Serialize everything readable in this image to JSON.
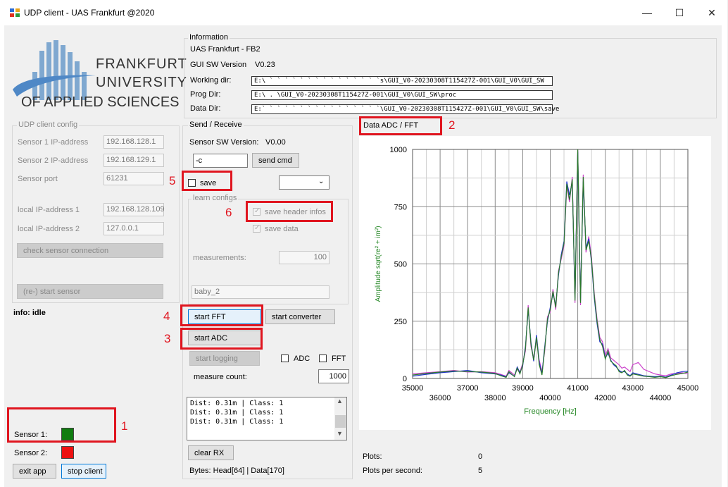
{
  "window": {
    "title": "UDP client - UAS Frankfurt @2020",
    "minimize": "—",
    "maximize": "☐",
    "close": "✕"
  },
  "logo": {
    "line1": "FRANKFURT",
    "line2": "UNIVERSITY",
    "line3": "OF APPLIED SCIENCES"
  },
  "information": {
    "title": "Information",
    "org": "UAS Frankfurt - FB2",
    "gui_sw_label": "GUI SW Version",
    "gui_sw_value": "V0.23",
    "working_dir_label": "Working dir:",
    "working_dir": "E:\\ ` ` ` ` ` ` ` ` ` ` ` ` ` ` `s\\GUI_V0-20230308T115427Z-001\\GUI_V0\\GUI_SW",
    "prog_dir_label": "Prog Dir:",
    "prog_dir": "E:\\        .           \\GUI_V0-20230308T115427Z-001\\GUI_V0\\GUI_SW\\proc",
    "data_dir_label": "Data Dir:",
    "data_dir": "E:` ` ` ` ` ` ` ` ` ` ` ` ` ` ` `\\GUI_V0-20230308T115427Z-001\\GUI_V0\\GUI_SW\\save"
  },
  "udp_config": {
    "title": "UDP client config",
    "sensor1_label": "Sensor 1 IP-address",
    "sensor1_ip": "192.168.128.1",
    "sensor2_label": "Sensor 2 IP-address",
    "sensor2_ip": "192.168.129.1",
    "port_label": "Sensor port",
    "port": "61231",
    "local1_label": "local IP-address 1",
    "local1": "192.168.128.109",
    "local2_label": "local IP-address 2",
    "local2": "127.0.0.1",
    "check_btn": "check sensor connection",
    "restart_btn": "(re-) start sensor"
  },
  "info": "info: idle",
  "status": {
    "sensor1_label": "Sensor 1:",
    "sensor1_color": "#107c10",
    "sensor2_label": "Sensor 2:",
    "sensor2_color": "#ee1111",
    "exit_btn": "exit app",
    "stop_btn": "stop client"
  },
  "send_receive": {
    "title": "Send / Receive",
    "sensor_sw_label": "Sensor SW Version:",
    "sensor_sw_value": "V0.00",
    "cmd_value": "-c",
    "send_cmd_btn": "send cmd",
    "save_label": "save",
    "learn_title": "learn configs",
    "save_header_label": "save header infos",
    "save_data_label": "save data",
    "measurements_label": "measurements:",
    "measurements_value": "100",
    "name_value": "baby_2",
    "start_fft_btn": "start FFT",
    "start_converter_btn": "start converter",
    "start_adc_btn": "start ADC",
    "start_logging_btn": "start logging",
    "adc_label": "ADC",
    "fft_label": "FFT",
    "measure_count_label": "measure count:",
    "measure_count": "1000",
    "console_lines": [
      "Dist: 0.31m | Class: 1",
      "Dist: 0.31m | Class: 1",
      "Dist: 0.31m | Class: 1"
    ],
    "clear_rx_btn": "clear RX",
    "bytes": "Bytes: Head[64] | Data[170]"
  },
  "chart_panel": {
    "title": "Data ADC / FFT",
    "plots_label": "Plots:",
    "plots_value": "0",
    "pps_label": "Plots per second:",
    "pps_value": "5"
  },
  "annotations": [
    "1",
    "2",
    "3",
    "4",
    "5",
    "6"
  ],
  "chart_data": {
    "type": "line",
    "xlabel": "Frequency [Hz]",
    "ylabel": "Amplitude sqrt(re² + im²)",
    "xlim": [
      35000,
      45000
    ],
    "ylim": [
      0,
      1000
    ],
    "xticks": [
      35000,
      36000,
      37000,
      38000,
      39000,
      40000,
      41000,
      42000,
      43000,
      44000,
      45000
    ],
    "yticks": [
      0,
      250,
      500,
      750,
      1000
    ],
    "grid": true,
    "series": [
      {
        "color": "#2a7a2a",
        "x": [
          35000,
          35500,
          36000,
          36500,
          37000,
          37500,
          38000,
          38200,
          38400,
          38500,
          38700,
          38800,
          38900,
          39000,
          39100,
          39200,
          39300,
          39400,
          39500,
          39600,
          39700,
          39800,
          39900,
          40000,
          40100,
          40200,
          40300,
          40400,
          40500,
          40600,
          40700,
          40800,
          40900,
          41000,
          41100,
          41200,
          41300,
          41400,
          41500,
          41600,
          41700,
          41800,
          41900,
          42000,
          42100,
          42200,
          42300,
          42400,
          42500,
          42600,
          42700,
          42800,
          42900,
          43000,
          43200,
          43400,
          43600,
          43800,
          44000,
          44200,
          44400,
          44600,
          44800,
          45000
        ],
        "y": [
          15,
          22,
          28,
          33,
          30,
          28,
          22,
          12,
          5,
          30,
          8,
          45,
          20,
          60,
          130,
          310,
          150,
          80,
          180,
          60,
          15,
          130,
          260,
          300,
          380,
          310,
          460,
          530,
          590,
          850,
          780,
          870,
          340,
          1000,
          330,
          880,
          560,
          600,
          520,
          360,
          250,
          170,
          140,
          85,
          120,
          75,
          65,
          55,
          30,
          25,
          35,
          15,
          10,
          20,
          15,
          10,
          8,
          5,
          8,
          4,
          12,
          18,
          22,
          28
        ]
      },
      {
        "color": "#2233cc",
        "x": [
          35000,
          35500,
          36000,
          36500,
          37000,
          37500,
          38000,
          38200,
          38400,
          38500,
          38700,
          38800,
          38900,
          39000,
          39100,
          39200,
          39300,
          39400,
          39500,
          39600,
          39700,
          39800,
          39900,
          40000,
          40100,
          40200,
          40300,
          40400,
          40500,
          40600,
          40700,
          40800,
          40900,
          41000,
          41100,
          41200,
          41300,
          41400,
          41500,
          41600,
          41700,
          41800,
          41900,
          42000,
          42100,
          42200,
          42300,
          42400,
          42500,
          42600,
          42700,
          42800,
          42900,
          43000,
          43200,
          43400,
          43600,
          43800,
          44000,
          44200,
          44400,
          44600,
          44800,
          45000
        ],
        "y": [
          10,
          18,
          25,
          30,
          35,
          25,
          20,
          15,
          8,
          25,
          10,
          50,
          25,
          55,
          140,
          300,
          160,
          75,
          190,
          70,
          20,
          140,
          250,
          310,
          370,
          320,
          450,
          540,
          600,
          860,
          800,
          860,
          350,
          990,
          340,
          860,
          570,
          610,
          510,
          350,
          240,
          160,
          150,
          90,
          110,
          80,
          60,
          50,
          35,
          28,
          30,
          20,
          12,
          25,
          18,
          12,
          10,
          8,
          10,
          6,
          15,
          25,
          30,
          32
        ]
      },
      {
        "color": "#cc44cc",
        "x": [
          35000,
          35500,
          36000,
          36500,
          37000,
          37500,
          38000,
          38200,
          38400,
          38500,
          38700,
          38800,
          38900,
          39000,
          39100,
          39200,
          39300,
          39400,
          39500,
          39600,
          39700,
          39800,
          39900,
          40000,
          40100,
          40200,
          40300,
          40400,
          40500,
          40600,
          40700,
          40800,
          40900,
          41000,
          41100,
          41200,
          41300,
          41400,
          41500,
          41600,
          41700,
          41800,
          41900,
          42000,
          42100,
          42200,
          42300,
          42400,
          42500,
          42600,
          42700,
          42800,
          42900,
          43000,
          43200,
          43400,
          43600,
          43800,
          44000,
          44200,
          44400,
          44600,
          44800,
          45000
        ],
        "y": [
          20,
          25,
          30,
          35,
          28,
          30,
          25,
          18,
          10,
          35,
          15,
          40,
          30,
          65,
          120,
          320,
          140,
          90,
          170,
          80,
          30,
          120,
          270,
          290,
          390,
          300,
          470,
          520,
          580,
          840,
          770,
          880,
          330,
          1000,
          320,
          890,
          550,
          620,
          530,
          370,
          260,
          180,
          160,
          100,
          130,
          90,
          80,
          70,
          60,
          45,
          50,
          40,
          30,
          60,
          70,
          40,
          30,
          20,
          15,
          12,
          20,
          22,
          25,
          20
        ]
      }
    ]
  }
}
